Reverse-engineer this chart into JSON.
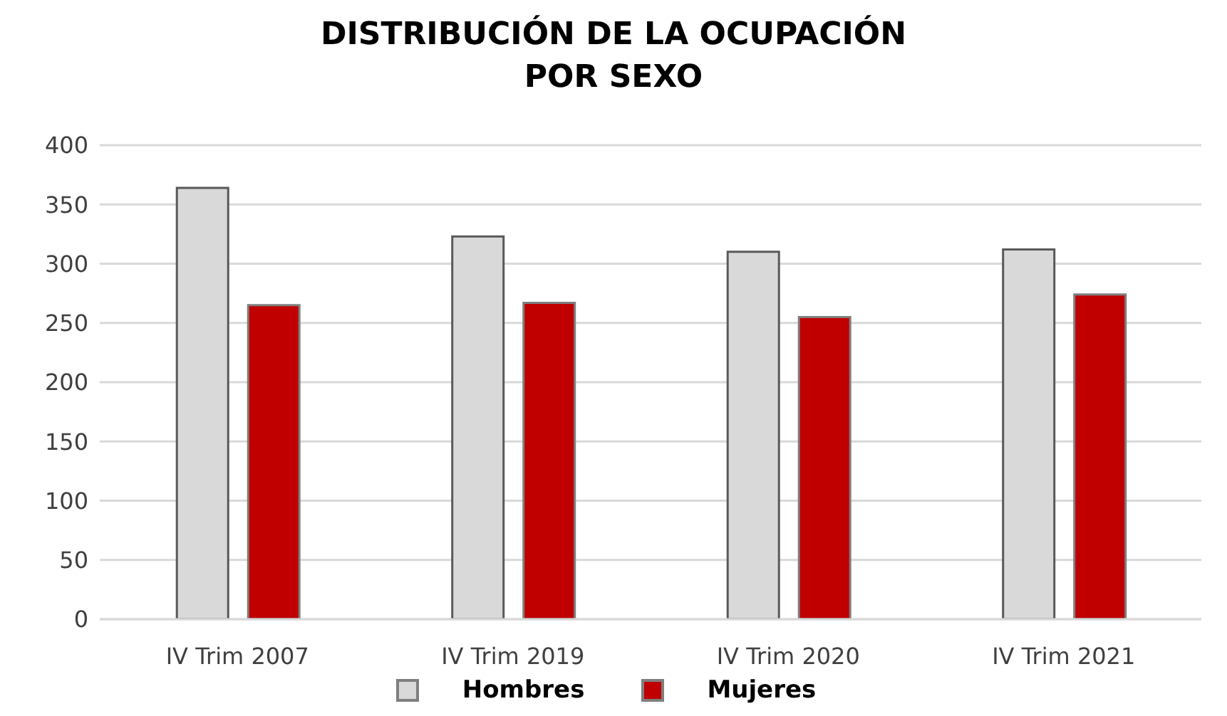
{
  "chart_data": {
    "type": "bar",
    "title": "DISTRIBUCIÓN DE LA OCUPACIÓN\nPOR SEXO",
    "categories": [
      "IV Trim 2007",
      "IV Trim 2019",
      "IV Trim 2020",
      "IV Trim 2021"
    ],
    "series": [
      {
        "name": "Hombres",
        "color": "#d9d9d9",
        "values": [
          364,
          323,
          310,
          312
        ]
      },
      {
        "name": "Mujeres",
        "color": "#c00000",
        "values": [
          265,
          267,
          255,
          274
        ]
      }
    ],
    "ylim": [
      0,
      400
    ],
    "yticks": [
      0,
      50,
      100,
      150,
      200,
      250,
      300,
      350,
      400
    ],
    "grid": "y",
    "legend": "bottom"
  }
}
